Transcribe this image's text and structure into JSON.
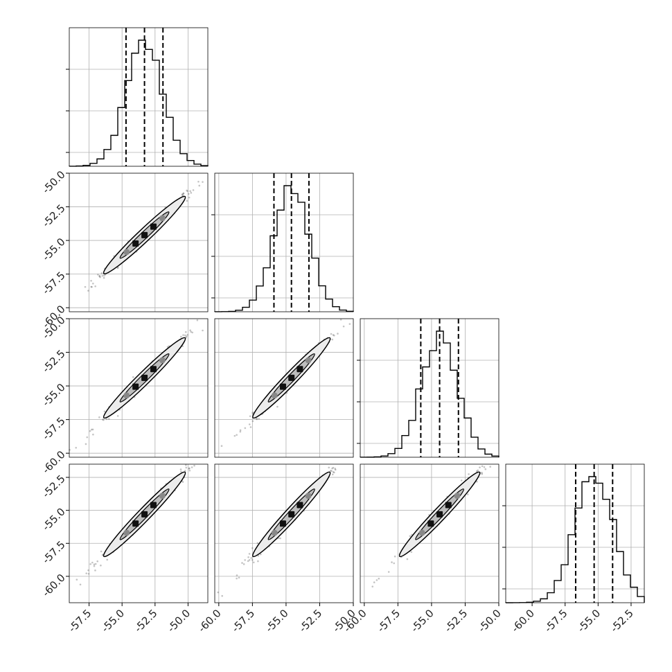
{
  "chart_data": {
    "type": "corner",
    "grid": true,
    "n_params": 4,
    "ranges": [
      [
        -59.0,
        -48.5
      ],
      [
        -60.3,
        -50.0
      ],
      [
        -60.3,
        -50.0
      ],
      [
        -62.0,
        -51.5
      ]
    ],
    "ticks": [
      [
        "-57.5",
        "-55.0",
        "-52.5",
        "-50.0"
      ],
      [
        "-60.0",
        "-57.5",
        "-55.0",
        "-52.5",
        "-50.0"
      ],
      [
        "-60.0",
        "-57.5",
        "-55.0",
        "-52.5",
        "-50.0"
      ],
      [
        "-60.0",
        "-57.5",
        "-55.0",
        "-52.5"
      ]
    ],
    "row_ticks": [
      [],
      [
        "-50.0",
        "-52.5",
        "-55.0",
        "-57.5",
        "-60.0"
      ],
      [
        "-50.0",
        "-52.5",
        "-55.0",
        "-57.5",
        "-60.0"
      ],
      [
        "-52.5",
        "-55.0",
        "-57.5",
        "-60.0"
      ]
    ],
    "medians": [
      -53.3,
      -54.6,
      -54.4,
      -55.3
    ],
    "stds": [
      1.4,
      1.3,
      1.35,
      1.45
    ],
    "quantiles": [
      [
        -54.7,
        -53.3,
        -51.9
      ],
      [
        -55.9,
        -54.6,
        -53.3
      ],
      [
        -55.8,
        -54.4,
        -53.0
      ],
      [
        -56.7,
        -55.3,
        -53.9
      ]
    ],
    "correlation": 0.99,
    "hist_bins": 20
  }
}
